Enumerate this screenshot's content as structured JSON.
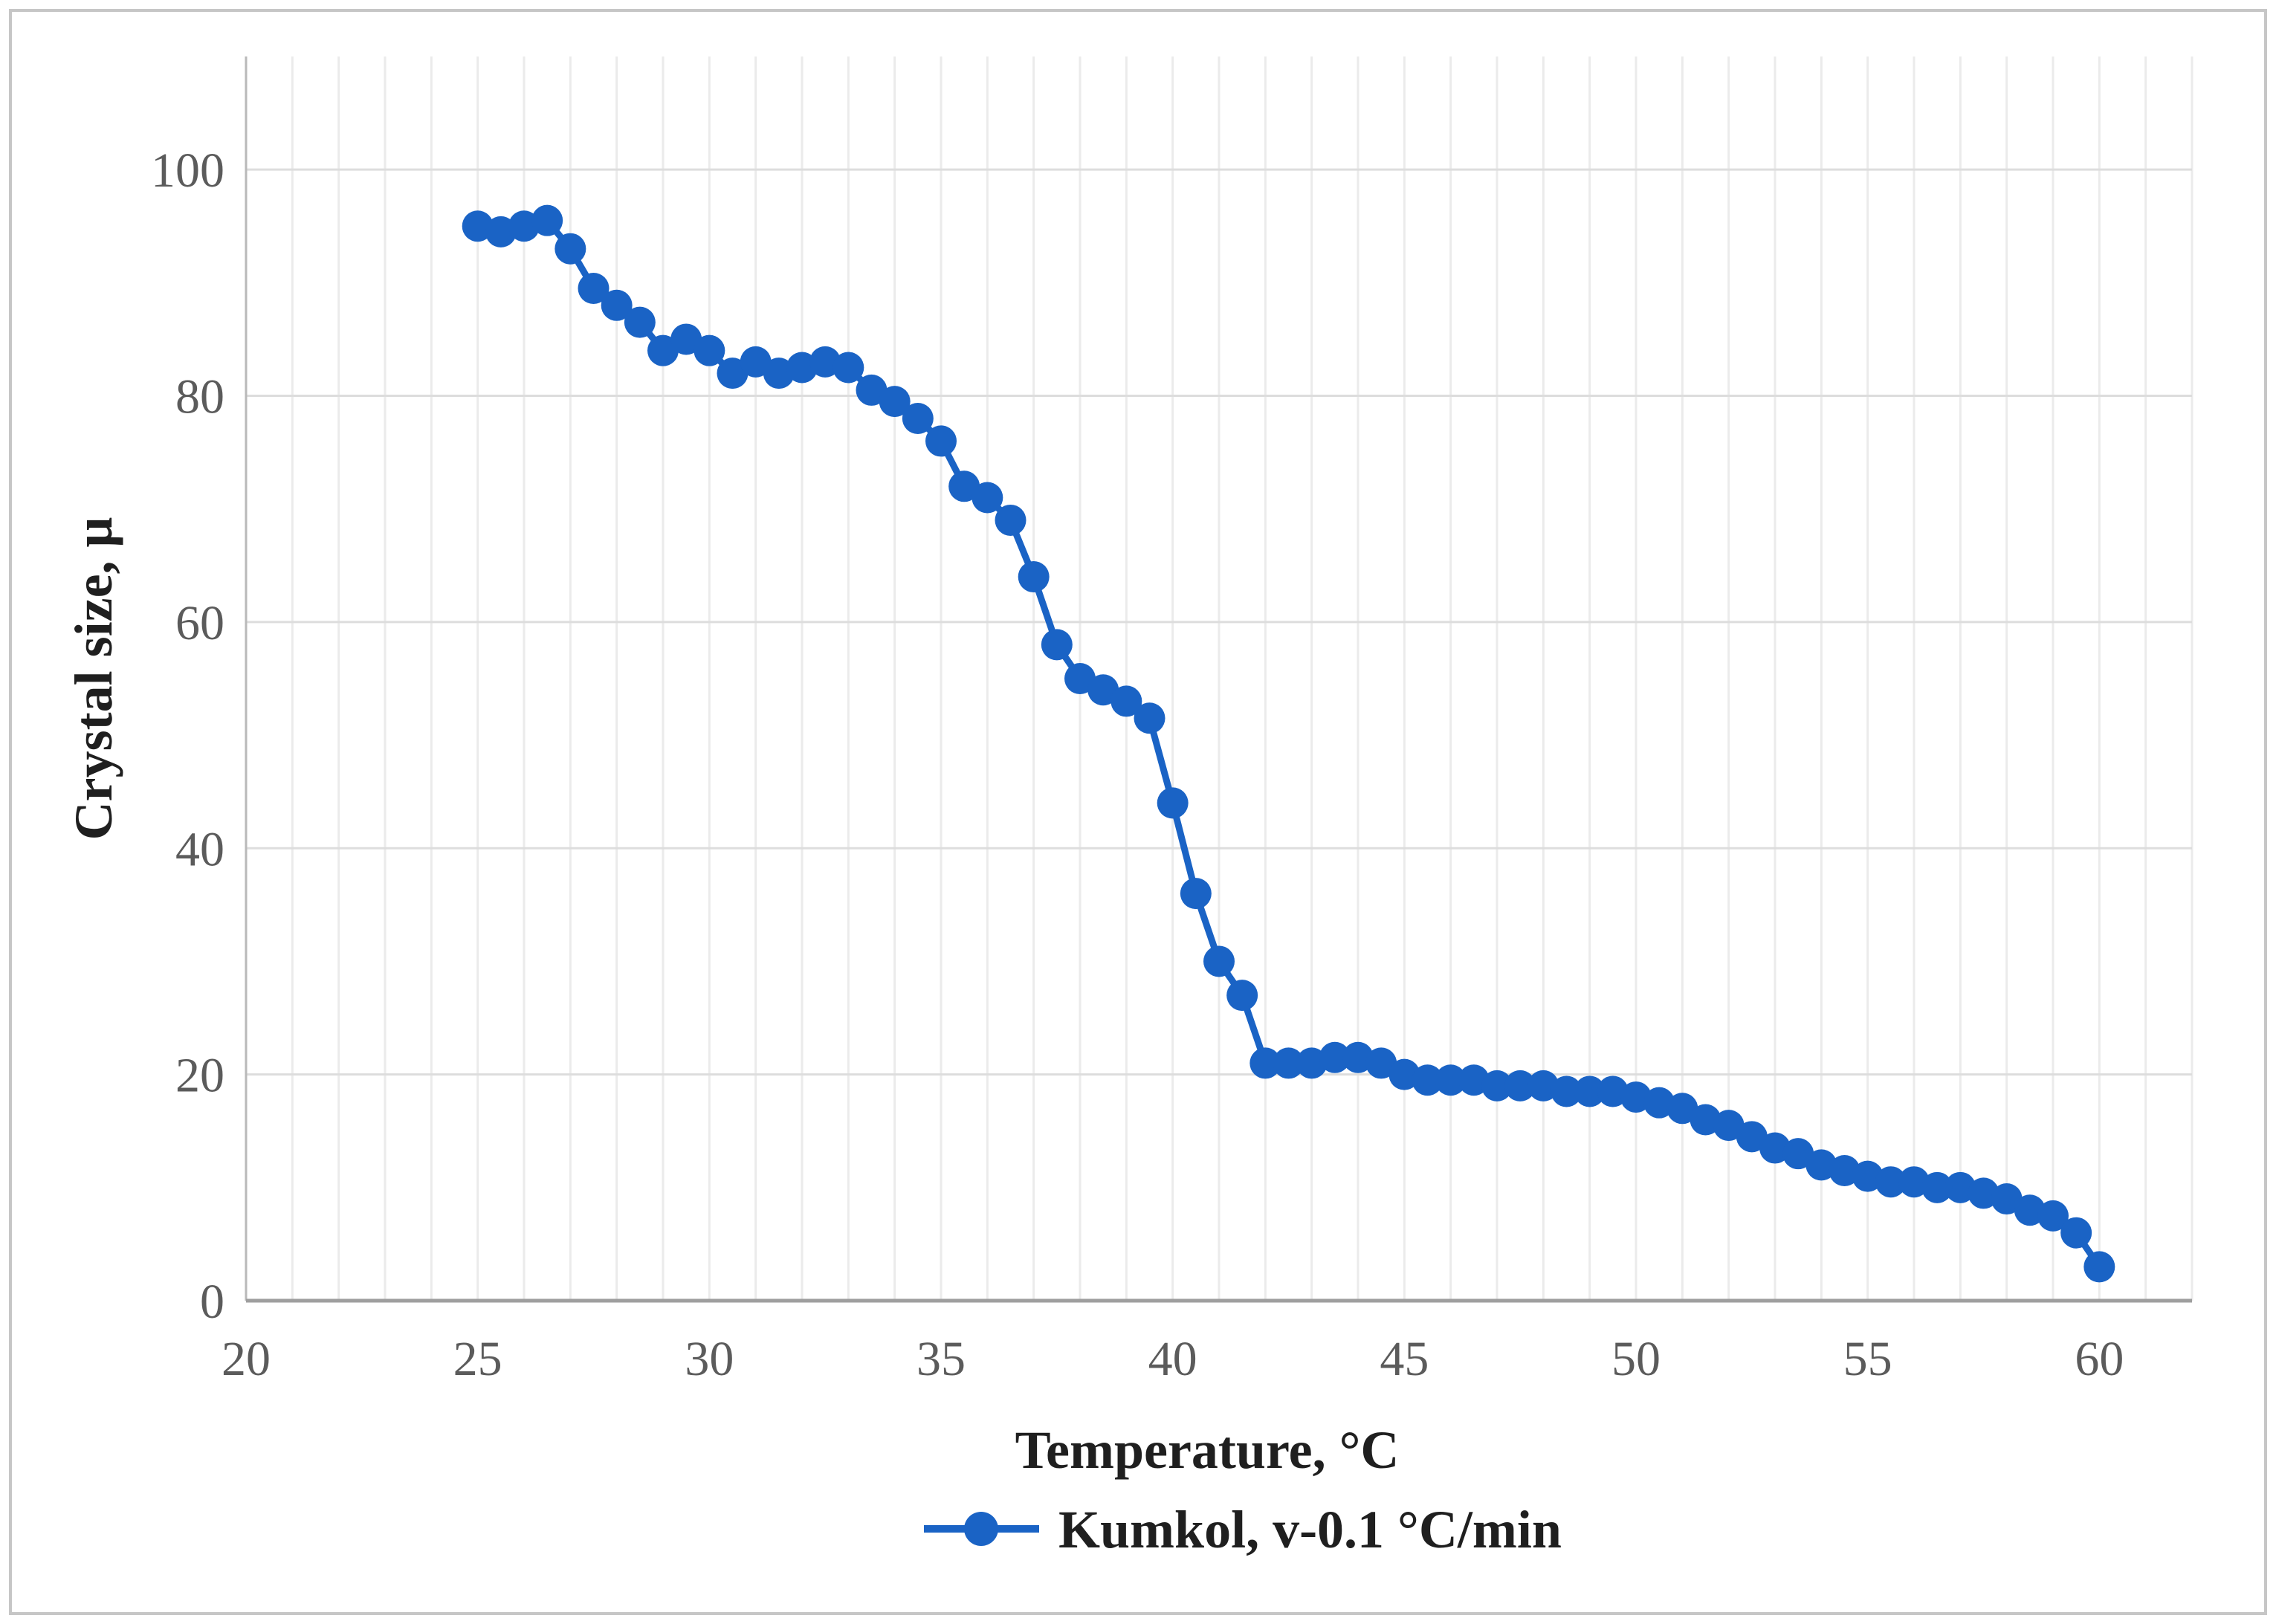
{
  "figure": {
    "background_color": "#ffffff",
    "border_color": "#c6c6c6"
  },
  "chart_data": {
    "type": "line",
    "title": "",
    "xlabel": "Temperature, °C",
    "ylabel": "Crystal size, μ",
    "xlim": [
      20,
      62
    ],
    "ylim": [
      0,
      110
    ],
    "x_ticks": [
      20,
      25,
      30,
      35,
      40,
      45,
      50,
      55,
      60
    ],
    "y_ticks": [
      0,
      20,
      40,
      60,
      80,
      100
    ],
    "grid": "on",
    "minor_x_grid_step": 1,
    "legend_position": "bottom-center",
    "colors": {
      "series_blue": "#1a63c5",
      "major_gridline": "#dddddd",
      "minor_gridline": "#ebebeb",
      "x_axis_line": "#9e9e9e",
      "y_axis_line": "#b9b9b9",
      "tick_label": "#5b5b5b"
    },
    "series": [
      {
        "name": "Kumkol, v-0.1 °C/min",
        "color": "#1a63c5",
        "marker": "circle",
        "x": [
          25,
          25.5,
          26,
          26.5,
          27,
          27.5,
          28,
          28.5,
          29,
          29.5,
          30,
          30.5,
          31,
          31.5,
          32,
          32.5,
          33,
          33.5,
          34,
          34.5,
          35,
          35.5,
          36,
          36.5,
          37,
          37.5,
          38,
          38.5,
          39,
          39.5,
          40,
          40.5,
          41,
          41.5,
          42,
          42.5,
          43,
          43.5,
          44,
          44.5,
          45,
          45.5,
          46,
          46.5,
          47,
          47.5,
          48,
          48.5,
          49,
          49.5,
          50,
          50.5,
          51,
          51.5,
          52,
          52.5,
          53,
          53.5,
          54,
          54.5,
          55,
          55.5,
          56,
          56.5,
          57,
          57.5,
          58,
          58.5,
          59,
          59.5,
          60
        ],
        "values": [
          95,
          94.5,
          95,
          95.5,
          93,
          89.5,
          88,
          86.5,
          84,
          85,
          84,
          82,
          83,
          82,
          82.5,
          83,
          82.5,
          80.5,
          79.5,
          78,
          76,
          72,
          71,
          69,
          64,
          58,
          55,
          54,
          53,
          51.5,
          44,
          36,
          30,
          27,
          21,
          21,
          21,
          21.5,
          21.5,
          21,
          20,
          19.5,
          19.5,
          19.5,
          19,
          19,
          19,
          18.5,
          18.5,
          18.5,
          18,
          17.5,
          17,
          16,
          15.5,
          14.5,
          13.5,
          13,
          12,
          11.5,
          11,
          10.5,
          10.5,
          10,
          10,
          9.5,
          9,
          8,
          7.5,
          6,
          3
        ]
      }
    ]
  }
}
